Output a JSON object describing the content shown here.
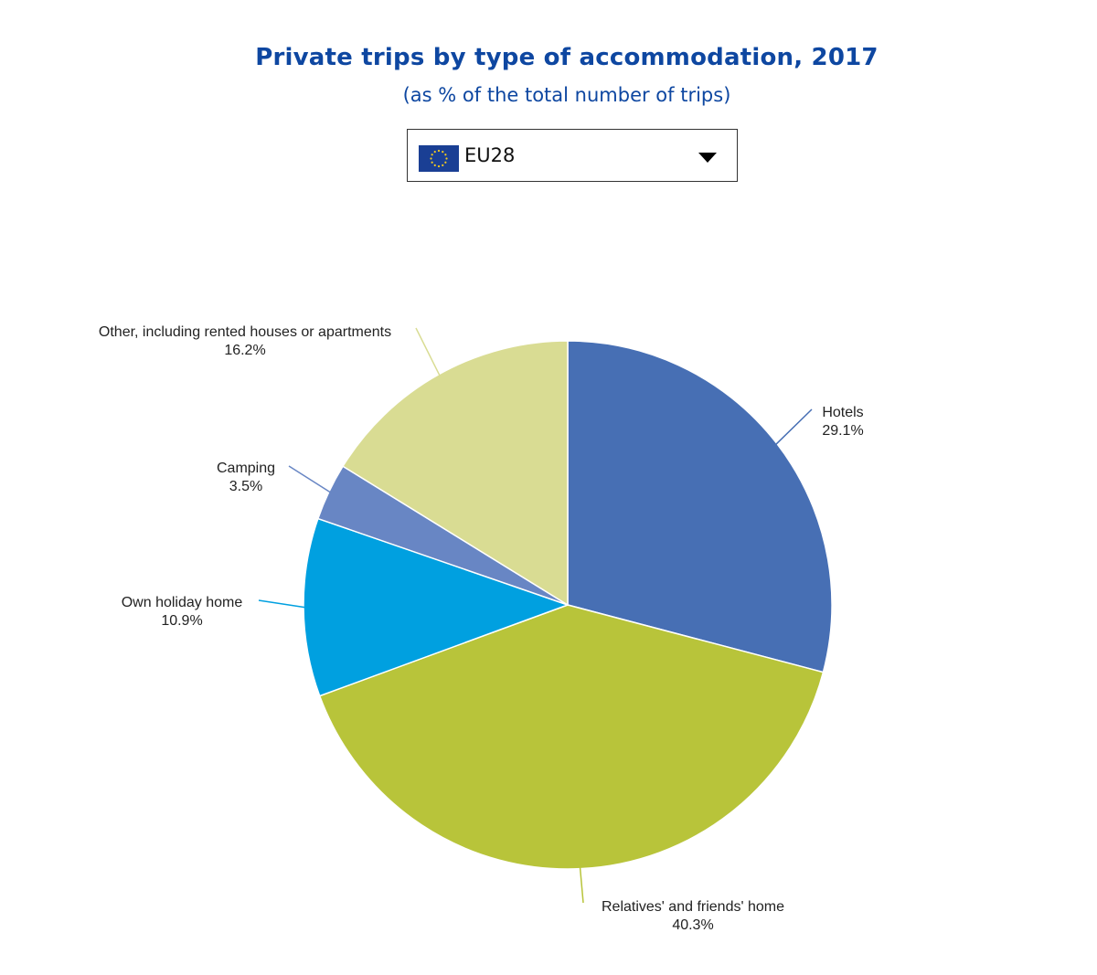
{
  "header": {
    "title": "Private trips by type of accommodation, 2017",
    "subtitle": "(as % of the total number of trips)"
  },
  "selector": {
    "value": "EU28",
    "flag_icon": "eu-flag-icon",
    "dropdown_icon": "chevron-down-icon"
  },
  "chart_data": {
    "type": "pie",
    "title": "Private trips by type of accommodation, 2017",
    "subtitle": "(as % of the total number of trips)",
    "unit": "%",
    "slices": [
      {
        "label": "Hotels",
        "value": 29.1,
        "value_label": "29.1%",
        "color": "#476fb4"
      },
      {
        "label": "Relatives' and friends' home",
        "value": 40.3,
        "value_label": "40.3%",
        "color": "#b8c43a"
      },
      {
        "label": "Own holiday home",
        "value": 10.9,
        "value_label": "10.9%",
        "color": "#00a0e0"
      },
      {
        "label": "Camping",
        "value": 3.5,
        "value_label": "3.5%",
        "color": "#6886c4"
      },
      {
        "label": "Other, including rented houses or apartments",
        "value": 16.2,
        "value_label": "16.2%",
        "color": "#d9dc93"
      }
    ],
    "start": "12 o'clock",
    "direction": "clockwise"
  }
}
